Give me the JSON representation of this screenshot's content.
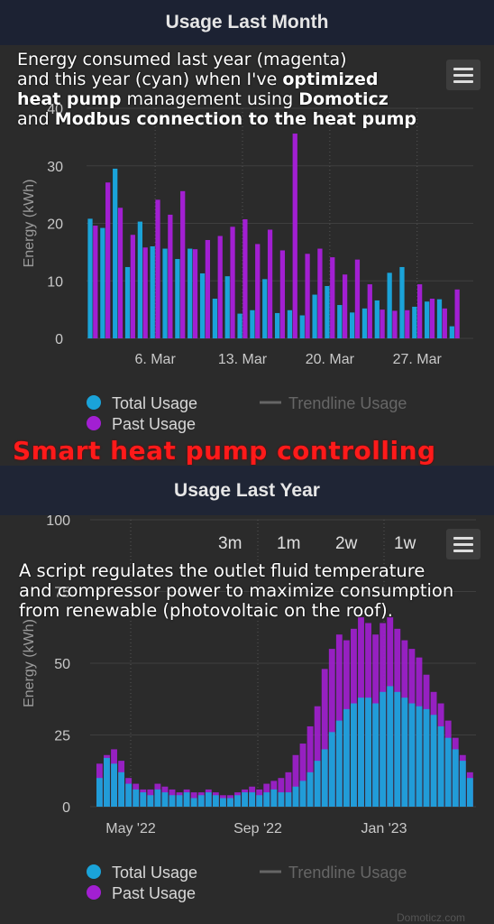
{
  "top_panel": {
    "title": "Usage Last Month",
    "note_line1": "Energy consumed last year (magenta)",
    "note_line2": "and this year (cyan) when I've ",
    "note_bold1": "optimized",
    "note_bold2": "heat pump",
    "note_line3": " management using ",
    "note_bold3": "Domoticz",
    "note_and": "and ",
    "note_bold4": "Modbus connection to the heat pump",
    "menu_icon": "hamburger-menu-icon"
  },
  "banner": "Smart heat pump controlling",
  "bottom_panel": {
    "title": "Usage Last Year",
    "range_buttons": [
      "3m",
      "1m",
      "2w",
      "1w"
    ],
    "note": "A script regulates the outlet fluid temperature and compressor power to maximize consumption from renewable (photovoltaic on the roof).",
    "note_lines": [
      "A script regulates the outlet fluid temperature",
      "and compressor power to maximize consumption",
      "from renewable (photovoltaic on the roof)."
    ],
    "credit": "Domoticz.com"
  },
  "legend": {
    "total": "Total Usage",
    "past": "Past Usage",
    "trend": "Trendline Usage"
  },
  "colors": {
    "total": "#1aa3d9",
    "past": "#a21fd2",
    "header_bg": "#1e2330",
    "panel_bg": "#2b2b2b",
    "banner": "#ff1a1a"
  },
  "chart_data": [
    {
      "type": "bar",
      "title": "Usage Last Month",
      "ylabel": "Energy (kWh)",
      "ylim": [
        0,
        40
      ],
      "yticks": [
        "0",
        "10",
        "20",
        "30",
        "40"
      ],
      "xticks": [
        "6. Mar",
        "13. Mar",
        "20. Mar",
        "27. Mar"
      ],
      "categories": [
        "1",
        "2",
        "3",
        "4",
        "5",
        "6",
        "7",
        "8",
        "9",
        "10",
        "11",
        "12",
        "13",
        "14",
        "15",
        "16",
        "17",
        "18",
        "19",
        "20",
        "21",
        "22",
        "23",
        "24",
        "25",
        "26",
        "27",
        "28",
        "29",
        "30",
        "31"
      ],
      "series": [
        {
          "name": "Total Usage",
          "values": [
            20.8,
            19.2,
            29.5,
            12.4,
            20.3,
            16.0,
            15.6,
            13.8,
            15.6,
            11.3,
            6.9,
            10.8,
            4.3,
            4.9,
            10.3,
            4.4,
            4.9,
            4.0,
            7.6,
            9.1,
            5.8,
            4.5,
            5.2,
            6.6,
            11.4,
            12.4,
            5.5,
            6.4,
            6.8,
            2.1,
            0
          ]
        },
        {
          "name": "Past Usage",
          "values": [
            19.6,
            27.1,
            22.7,
            18.0,
            15.8,
            24.1,
            21.5,
            25.6,
            15.5,
            17.1,
            17.8,
            19.4,
            20.7,
            16.4,
            18.9,
            15.3,
            35.6,
            14.7,
            15.6,
            14.1,
            11.1,
            13.7,
            9.4,
            5.0,
            4.8,
            4.9,
            9.4,
            6.9,
            5.2,
            8.5,
            0
          ]
        }
      ],
      "legend": "bottom-left",
      "grid": true
    },
    {
      "type": "bar",
      "title": "Usage Last Year",
      "ylabel": "Energy (kWh)",
      "ylim": [
        0,
        100
      ],
      "yticks": [
        "0",
        "25",
        "50",
        "75",
        "100"
      ],
      "xticks": [
        "May '22",
        "Sep '22",
        "Jan '23"
      ],
      "x_range": [
        "2022-04-01",
        "2023-03-31"
      ],
      "series": [
        {
          "name": "Total Usage",
          "values": [
            10,
            17,
            15,
            12,
            8,
            6,
            5,
            4,
            6,
            5,
            4,
            4,
            5,
            3,
            4,
            5,
            4,
            3,
            3,
            4,
            5,
            5,
            4,
            5,
            6,
            5,
            5,
            7,
            9,
            12,
            16,
            20,
            26,
            30,
            34,
            36,
            38,
            38,
            36,
            40,
            42,
            40,
            38,
            36,
            35,
            34,
            32,
            28,
            24,
            20,
            16,
            10
          ]
        },
        {
          "name": "Past Usage",
          "values": [
            15,
            18,
            20,
            16,
            10,
            8,
            6,
            6,
            8,
            7,
            6,
            5,
            6,
            5,
            5,
            6,
            5,
            4,
            4,
            5,
            6,
            7,
            6,
            8,
            9,
            10,
            12,
            18,
            22,
            28,
            35,
            48,
            55,
            60,
            58,
            62,
            66,
            64,
            60,
            64,
            66,
            62,
            58,
            55,
            52,
            46,
            40,
            36,
            30,
            24,
            18,
            12
          ]
        }
      ],
      "legend": "bottom-left",
      "grid": true
    }
  ]
}
